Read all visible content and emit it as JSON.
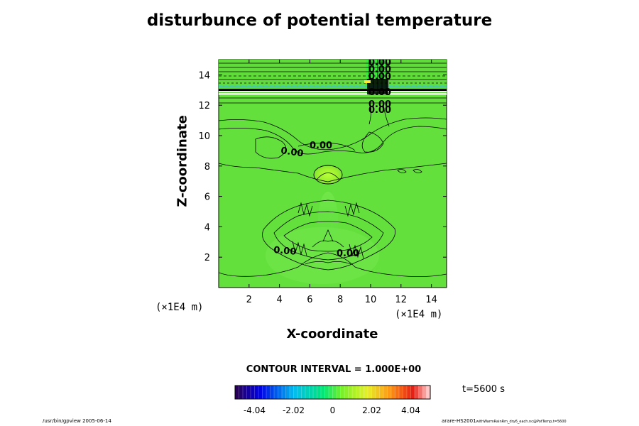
{
  "chart_data": {
    "type": "heatmap",
    "title": "disturbunce of potential temperature",
    "xlabel": "X-coordinate",
    "ylabel": "Z-coordinate",
    "x_unit": "(×1E4 m)",
    "y_unit": "(×1E4 m)",
    "xlim": [
      0,
      15
    ],
    "ylim": [
      0,
      15
    ],
    "xticks": [
      2,
      4,
      6,
      8,
      10,
      12,
      14
    ],
    "yticks": [
      2,
      4,
      6,
      8,
      10,
      12,
      14
    ],
    "contour_labels": [
      {
        "text": "0.00",
        "x": 5.4,
        "y": 9.1
      },
      {
        "text": "0.00",
        "x": 6.8,
        "y": 9.3
      },
      {
        "text": "0.00",
        "x": 10.6,
        "y": 12.0
      },
      {
        "text": "0.00",
        "x": 10.6,
        "y": 12.5
      },
      {
        "text": "0.00",
        "x": 10.6,
        "y": 14.8
      },
      {
        "text": "0.00",
        "x": 10.6,
        "y": 14.4
      },
      {
        "text": "0.00",
        "x": 10.6,
        "y": 14.0
      },
      {
        "text": "0.00",
        "x": 10.6,
        "y": 13.6
      },
      {
        "text": "0.00",
        "x": 4.3,
        "y": 2.4
      },
      {
        "text": "0.00",
        "x": 8.9,
        "y": 2.2
      }
    ],
    "contour_interval": "CONTOUR INTERVAL = 1.000E+00",
    "time": "t=5600 s",
    "colorbar": {
      "min": -5.05,
      "max": 5.05,
      "ticks": [
        "-4.04",
        "-2.02",
        "0",
        "2.02",
        "4.04"
      ],
      "tick_values": [
        -4.04,
        -2.02,
        0,
        2.02,
        4.04
      ]
    }
  },
  "footer": {
    "left": "/usr/bin/gpview 2005-06-14",
    "right_main": "arare-HS2001",
    "right_small": "withWarmRainRm_dry6_each.nc@PotTemp,t=5600"
  }
}
